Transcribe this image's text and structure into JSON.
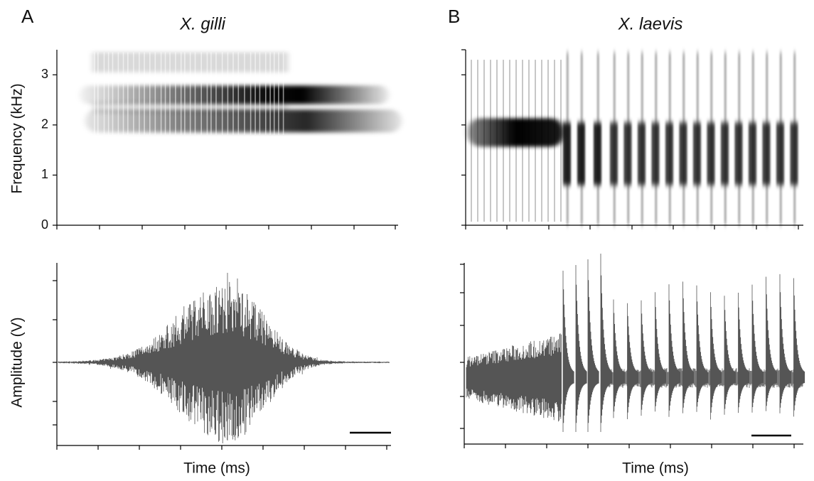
{
  "chart_data": [
    {
      "type": "spectrogram",
      "panel": "A",
      "title": "X. gilli",
      "ylabel": "Frequency (kHz)",
      "ylim": [
        0,
        3.5
      ],
      "yticks": [
        0,
        1,
        2,
        3
      ]
    },
    {
      "type": "waveform",
      "ylabel": "Amplitude (V)",
      "xlabel": "Time (ms)"
    },
    {
      "type": "spectrogram",
      "panel": "B",
      "title": "X. laevis",
      "ylim": [
        0,
        3.5
      ]
    },
    {
      "type": "waveform",
      "xlabel": "Time (ms)"
    }
  ]
}
